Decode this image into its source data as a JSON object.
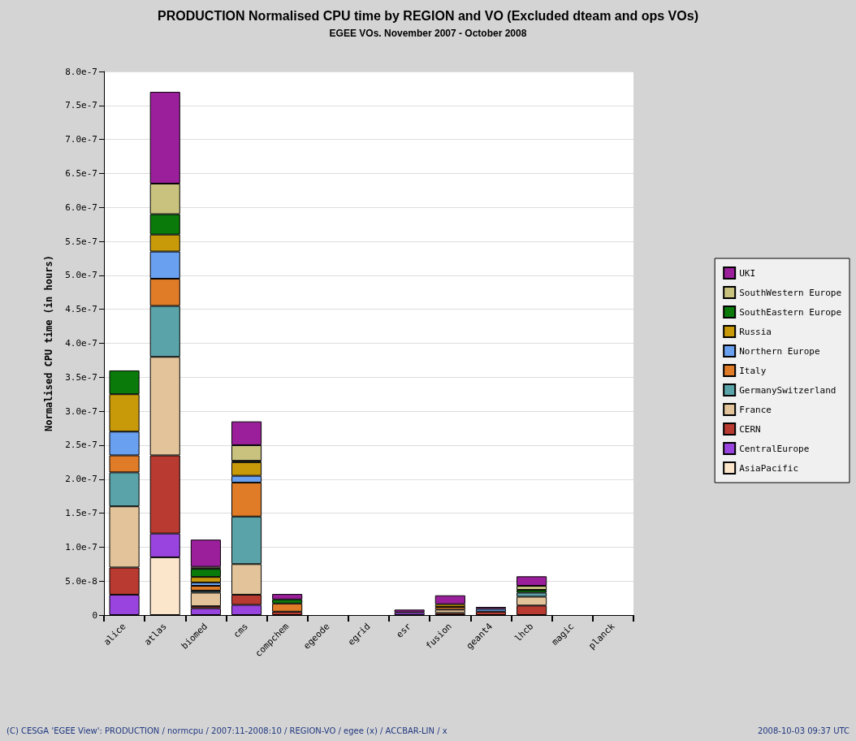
{
  "chart_data": {
    "type": "bar",
    "stacked": true,
    "title": "PRODUCTION Normalised CPU time by REGION and VO (Excluded dteam and ops VOs)",
    "subtitle": "EGEE VOs. November 2007 - October 2008",
    "ylabel": "Normalised CPU time (in hours)",
    "categories": [
      "alice",
      "atlas",
      "biomed",
      "cms",
      "compchem",
      "egeode",
      "egrid",
      "esr",
      "fusion",
      "geant4",
      "lhcb",
      "magic",
      "planck"
    ],
    "series": [
      {
        "name": "AsiaPacific",
        "color": "#fbe6cc",
        "values": [
          null,
          8.5e-08,
          null,
          null,
          null,
          null,
          null,
          null,
          null,
          null,
          null,
          null,
          null
        ]
      },
      {
        "name": "CentralEurope",
        "color": "#9a44e0",
        "values": [
          3e-08,
          3.5e-08,
          1e-08,
          1.5e-08,
          null,
          null,
          null,
          4e-09,
          null,
          null,
          null,
          null,
          null
        ]
      },
      {
        "name": "CERN",
        "color": "#b83a30",
        "values": [
          4e-08,
          1.15e-07,
          3e-09,
          1.5e-08,
          5e-09,
          null,
          null,
          null,
          3e-09,
          5e-09,
          1.4e-08,
          null,
          null
        ]
      },
      {
        "name": "France",
        "color": "#e3c49a",
        "values": [
          9e-08,
          1.45e-07,
          2e-08,
          4.5e-08,
          null,
          null,
          null,
          null,
          5e-09,
          null,
          1.3e-08,
          null,
          null
        ]
      },
      {
        "name": "GermanySwitzerland",
        "color": "#5aa3a8",
        "values": [
          5e-08,
          7.5e-08,
          3e-09,
          7e-08,
          null,
          null,
          null,
          null,
          null,
          null,
          6e-09,
          null,
          null
        ]
      },
      {
        "name": "Italy",
        "color": "#e07c28",
        "values": [
          2.5e-08,
          4e-08,
          7e-09,
          5e-08,
          1.2e-08,
          null,
          null,
          null,
          4e-09,
          null,
          null,
          null,
          null
        ]
      },
      {
        "name": "Northern Europe",
        "color": "#6aa0f0",
        "values": [
          3.5e-08,
          4e-08,
          5e-09,
          1e-08,
          null,
          null,
          null,
          null,
          null,
          4e-09,
          null,
          null,
          null
        ]
      },
      {
        "name": "Russia",
        "color": "#c89a0a",
        "values": [
          5.5e-08,
          2.5e-08,
          8e-09,
          2e-08,
          null,
          null,
          null,
          null,
          4e-09,
          null,
          null,
          null,
          null
        ]
      },
      {
        "name": "SouthEastern Europe",
        "color": "#0a7a0a",
        "values": [
          3.5e-08,
          3e-08,
          1.2e-08,
          2e-09,
          6e-09,
          null,
          null,
          null,
          null,
          null,
          4e-09,
          null,
          null
        ]
      },
      {
        "name": "SouthWestern Europe",
        "color": "#c8c27e",
        "values": [
          null,
          4.5e-08,
          3e-09,
          2.3e-08,
          null,
          null,
          null,
          null,
          null,
          null,
          6e-09,
          null,
          null
        ]
      },
      {
        "name": "UKI",
        "color": "#9b1f9b",
        "values": [
          null,
          1.35e-07,
          4e-08,
          3.5e-08,
          8e-09,
          null,
          null,
          4e-09,
          1.3e-08,
          3e-09,
          1.4e-08,
          null,
          null
        ]
      }
    ],
    "ylim": [
      0,
      8e-07
    ],
    "yticks": [
      0,
      {
        "value": 5e-08,
        "label": "5.0e-8"
      },
      {
        "value": 1e-07,
        "label": "1.0e-7"
      },
      {
        "value": 1.5e-07,
        "label": "1.5e-7"
      },
      {
        "value": 2e-07,
        "label": "2.0e-7"
      },
      {
        "value": 2.5e-07,
        "label": "2.5e-7"
      },
      {
        "value": 3e-07,
        "label": "3.0e-7"
      },
      {
        "value": 3.5e-07,
        "label": "3.5e-7"
      },
      {
        "value": 4e-07,
        "label": "4.0e-7"
      },
      {
        "value": 4.5e-07,
        "label": "4.5e-7"
      },
      {
        "value": 5e-07,
        "label": "5.0e-7"
      },
      {
        "value": 5.5e-07,
        "label": "5.5e-7"
      },
      {
        "value": 6e-07,
        "label": "6.0e-7"
      },
      {
        "value": 6.5e-07,
        "label": "6.5e-7"
      },
      {
        "value": 7e-07,
        "label": "7.0e-7"
      },
      {
        "value": 7.5e-07,
        "label": "7.5e-7"
      },
      {
        "value": 8e-07,
        "label": "8.0e-7"
      }
    ],
    "grid": "y",
    "legend": "right",
    "annotations": [
      "(C) CESGA 'EGEE View': PRODUCTION / normcpu / 2007:11-2008:10 / REGION-VO / egee (x) / ACCBAR-LIN / x",
      "2008-10-03 09:37 UTC"
    ]
  }
}
